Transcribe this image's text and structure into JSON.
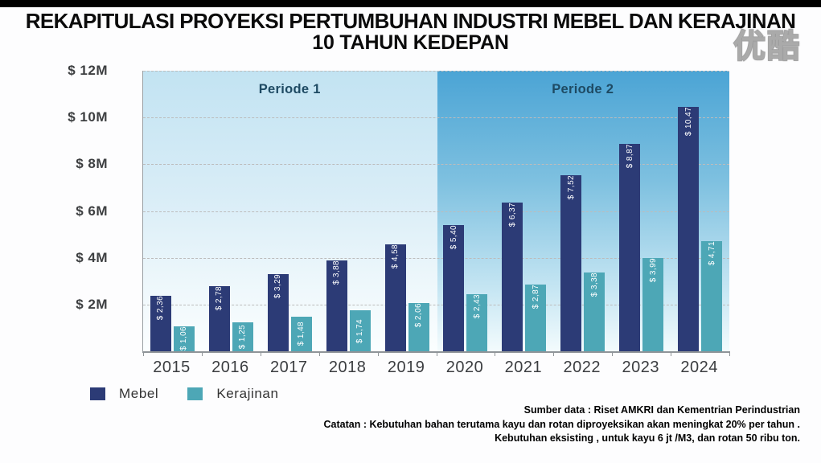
{
  "watermark": "优酷",
  "title": {
    "line1": "REKAPITULASI PROYEKSI PERTUMBUHAN INDUSTRI MEBEL DAN KERAJINAN",
    "line2": "10 TAHUN KEDEPAN"
  },
  "chart_data": {
    "type": "bar",
    "title": "REKAPITULASI PROYEKSI PERTUMBUHAN INDUSTRI MEBEL DAN KERAJINAN 10 TAHUN KEDEPAN",
    "categories": [
      "2015",
      "2016",
      "2017",
      "2018",
      "2019",
      "2020",
      "2021",
      "2022",
      "2023",
      "2024"
    ],
    "series": [
      {
        "name": "Mebel",
        "color": "#2c3b76",
        "values": [
          2.36,
          2.78,
          3.29,
          3.88,
          4.58,
          5.4,
          6.37,
          7.52,
          8.87,
          10.47
        ],
        "labels": [
          "$ 2,36",
          "$ 2,78",
          "$ 3,29",
          "$ 3,88",
          "$ 4,58",
          "$ 5,40",
          "$ 6,37",
          "$ 7,52",
          "$ 8,87",
          "$ 10,47"
        ]
      },
      {
        "name": "Kerajinan",
        "color": "#4da7b6",
        "values": [
          1.06,
          1.25,
          1.48,
          1.74,
          2.06,
          2.43,
          2.87,
          3.38,
          3.99,
          4.71
        ],
        "labels": [
          "$ 1,06",
          "$ 1,25",
          "$ 1,48",
          "$ 1,74",
          "$ 2,06",
          "$ 2,43",
          "$ 2,87",
          "$ 3,38",
          "$ 3,99",
          "$ 4,71"
        ]
      }
    ],
    "y_axis": {
      "min": 0,
      "max": 12,
      "ticks": [
        {
          "value": 12,
          "label": "$ 12M"
        },
        {
          "value": 10,
          "label": "$ 10M"
        },
        {
          "value": 8,
          "label": "$ 8M"
        },
        {
          "value": 6,
          "label": "$ 6M"
        },
        {
          "value": 4,
          "label": "$ 4M"
        },
        {
          "value": 2,
          "label": "$ 2M"
        }
      ]
    },
    "periods": [
      {
        "label": "Periode 1",
        "categories": [
          "2015",
          "2016",
          "2017",
          "2018",
          "2019"
        ]
      },
      {
        "label": "Periode 2",
        "categories": [
          "2020",
          "2021",
          "2022",
          "2023",
          "2024"
        ]
      }
    ],
    "grid": "dashed-horizontal",
    "legend_position": "bottom-left",
    "bar_value_label_orientation": "vertical"
  },
  "legend": {
    "items": [
      {
        "label": "Mebel",
        "color": "#2c3b76"
      },
      {
        "label": "Kerajinan",
        "color": "#4da7b6"
      }
    ]
  },
  "footnotes": {
    "line1": "Sumber data  : Riset AMKRI dan Kementrian Perindustrian",
    "line2": "Catatan : Kebutuhan bahan terutama  kayu dan rotan diproyeksikan akan meningkat 20%  per tahun .",
    "line3": "Kebutuhan  eksisting , untuk kayu  6 jt /M3, dan rotan 50  ribu ton."
  }
}
